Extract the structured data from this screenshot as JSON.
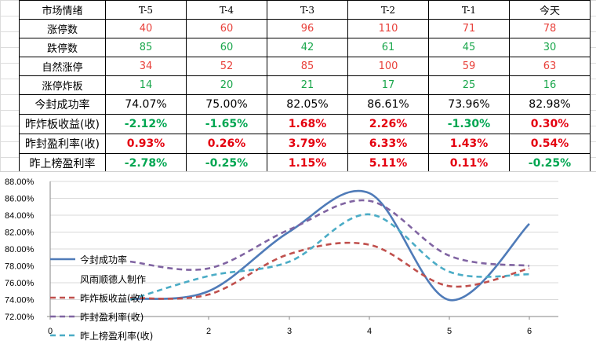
{
  "table": {
    "header": [
      "市场情绪",
      "T-5",
      "T-4",
      "T-3",
      "T-2",
      "T-1",
      "今天"
    ],
    "rows": [
      {
        "label": "涨停数",
        "cells": [
          "40",
          "60",
          "96",
          "110",
          "71",
          "78"
        ],
        "cls": [
          "red",
          "red",
          "red",
          "red",
          "red",
          "red"
        ]
      },
      {
        "label": "跌停数",
        "cells": [
          "85",
          "60",
          "42",
          "61",
          "45",
          "30"
        ],
        "cls": [
          "green",
          "green",
          "green",
          "green",
          "green",
          "green"
        ]
      },
      {
        "label": "自然涨停",
        "cells": [
          "34",
          "52",
          "85",
          "100",
          "59",
          "63"
        ],
        "cls": [
          "red",
          "red",
          "red",
          "red",
          "red",
          "red"
        ]
      },
      {
        "label": "涨停炸板",
        "cells": [
          "14",
          "20",
          "21",
          "17",
          "25",
          "16"
        ],
        "cls": [
          "green",
          "green",
          "green",
          "green",
          "green",
          "green"
        ]
      },
      {
        "label": "今封成功率",
        "cells": [
          "74.07%",
          "75.00%",
          "82.05%",
          "86.61%",
          "73.96%",
          "82.98%"
        ],
        "cls": [
          "black",
          "black",
          "black",
          "black",
          "black",
          "black"
        ]
      },
      {
        "label": "昨炸板收益(收)",
        "cells": [
          "-2.12%",
          "-1.65%",
          "1.68%",
          "2.26%",
          "-1.30%",
          "0.30%"
        ],
        "cls": [
          "bgreen",
          "bgreen",
          "bred",
          "bred",
          "bgreen",
          "bred"
        ]
      },
      {
        "label": "昨封盈利率(收)",
        "cells": [
          "0.93%",
          "0.26%",
          "3.79%",
          "6.33%",
          "1.43%",
          "0.54%"
        ],
        "cls": [
          "bred",
          "bred",
          "bred",
          "bred",
          "bred",
          "bred"
        ]
      },
      {
        "label": "昨上榜盈利率",
        "cells": [
          "-2.78%",
          "-0.25%",
          "1.15%",
          "5.11%",
          "0.11%",
          "-0.25%"
        ],
        "cls": [
          "bgreen",
          "bgreen",
          "bred",
          "bred",
          "bred",
          "bgreen"
        ]
      }
    ]
  },
  "chart_data": {
    "type": "line",
    "x": [
      1,
      2,
      3,
      4,
      5,
      6
    ],
    "xticks": [
      "0",
      "2",
      "3",
      "4",
      "5",
      "6"
    ],
    "yticks": [
      "72.00%",
      "74.00%",
      "76.00%",
      "78.00%",
      "80.00%",
      "82.00%",
      "84.00%",
      "86.00%",
      "88.00%"
    ],
    "ylim": [
      72,
      88
    ],
    "series": [
      {
        "name": "今封成功率",
        "values": [
          74.07,
          75.0,
          82.05,
          86.61,
          73.96,
          82.98
        ],
        "color": "#4f7bb8",
        "dash": "solid"
      },
      {
        "name": "昨炸板收益(收)",
        "values": [
          74.2,
          74.6,
          79.4,
          80.5,
          75.6,
          77.7
        ],
        "color": "#c0504d",
        "dash": "dashed"
      },
      {
        "name": "昨封盈利率(收)",
        "values": [
          78.5,
          77.7,
          82.3,
          85.7,
          79.2,
          78.0
        ],
        "color": "#8064a2",
        "dash": "dashed"
      },
      {
        "name": "昨上榜盈利率(收)",
        "values": [
          74.0,
          76.8,
          78.5,
          84.1,
          77.3,
          77.0
        ],
        "color": "#4bacc6",
        "dash": "dashed"
      }
    ],
    "legend_extra": "风雨顺德人制作",
    "legend_position": "left"
  },
  "colors": {
    "red": "#e8403a",
    "green": "#19a64b"
  }
}
